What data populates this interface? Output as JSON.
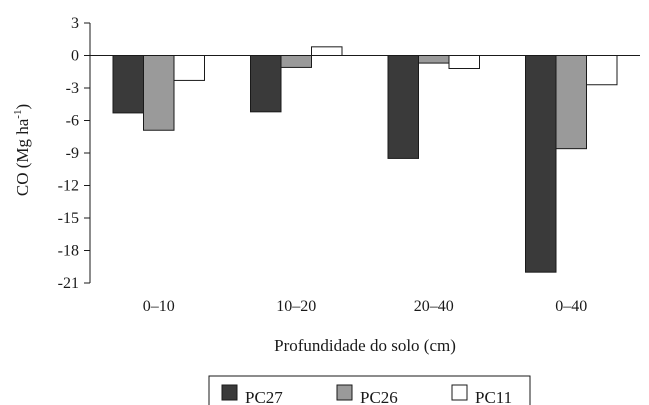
{
  "chart_data": {
    "type": "bar",
    "categories": [
      "0–10",
      "10–20",
      "20–40",
      "0–40"
    ],
    "series": [
      {
        "name": "PC27",
        "color": "#3a3a3a",
        "values": [
          -5.3,
          -5.2,
          -9.5,
          -20.0
        ]
      },
      {
        "name": "PC26",
        "color": "#9a9a9a",
        "values": [
          -6.9,
          -1.1,
          -0.7,
          -8.6
        ]
      },
      {
        "name": "PC11",
        "color": "#ffffff",
        "values": [
          -2.3,
          0.8,
          -1.2,
          -2.7
        ]
      }
    ],
    "xlabel": "Profundidade do solo (cm)",
    "ylabel": {
      "main": "CO (Mg ha",
      "sup": "-1",
      "close": ")"
    },
    "ylim": [
      -21,
      3
    ],
    "yticks": [
      3,
      0,
      -3,
      -6,
      -9,
      -12,
      -15,
      -18,
      -21
    ],
    "ytick_labels": [
      "3",
      "0",
      "-3",
      "-6",
      "-9",
      "-12",
      "-15",
      "-18",
      "-21"
    ],
    "grid": false,
    "legend_position": "bottom"
  }
}
